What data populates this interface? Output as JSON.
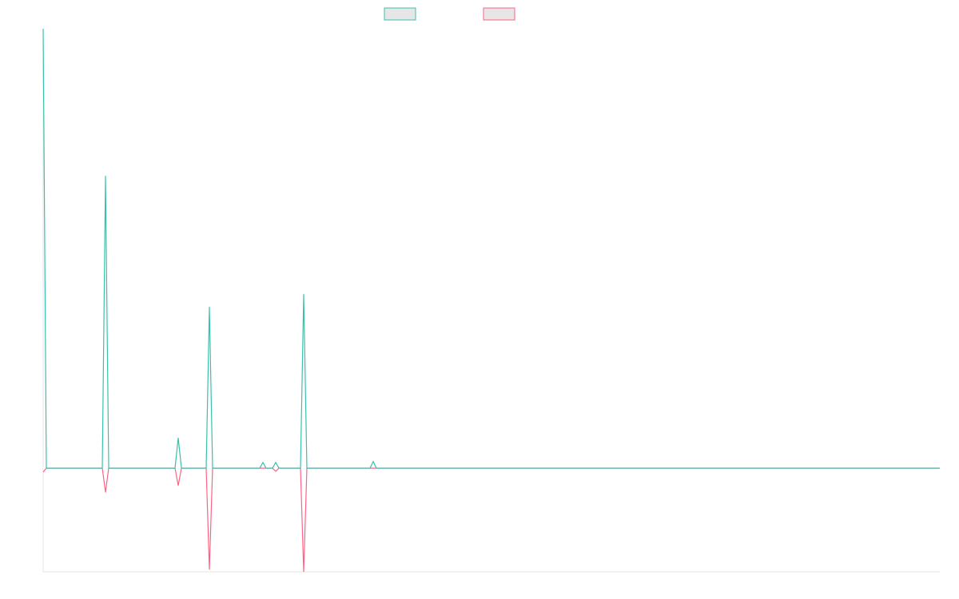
{
  "chart_data": {
    "type": "line",
    "x": [
      0,
      1,
      18.5,
      19.5,
      20.5,
      41.25,
      42.25,
      43.25,
      51,
      52,
      53,
      67.75,
      68.75,
      69.75,
      71.75,
      72.75,
      73.75,
      80.5,
      81.5,
      82.5,
      102.25,
      103.25,
      104.25,
      280.5
    ],
    "series": [
      {
        "color": "#3cbfae",
        "values": [
          100,
          0,
          0,
          66.5,
          0,
          0,
          6.9,
          0,
          0,
          36.7,
          0,
          0,
          1.3,
          0,
          0,
          1.3,
          0,
          0,
          39.6,
          0,
          0,
          1.5,
          0,
          0
        ]
      },
      {
        "color": "#ff6384",
        "values": [
          -0.9,
          0,
          0,
          -5.5,
          0,
          0,
          -4,
          0,
          0,
          -23.1,
          0,
          0,
          0,
          0,
          0,
          -0.7,
          0,
          0,
          -23.6,
          0,
          0,
          0,
          0,
          0
        ]
      }
    ],
    "xlim": [
      0,
      280.5
    ],
    "ylim": [
      -23.6,
      100
    ]
  }
}
